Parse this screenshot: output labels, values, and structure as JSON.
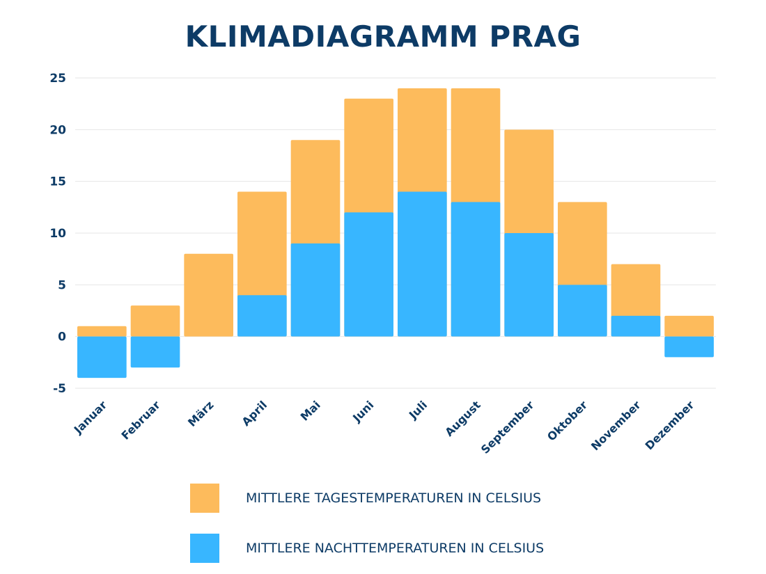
{
  "chart_data": {
    "type": "bar",
    "title": "KLIMADIAGRAMM PRAG",
    "categories": [
      "Januar",
      "Februar",
      "März",
      "April",
      "Mai",
      "Juni",
      "Juli",
      "August",
      "September",
      "Oktober",
      "November",
      "Dezember"
    ],
    "series": [
      {
        "name": "MITTLERE TAGESTEMPERATUREN IN CELSIUS",
        "color": "#fdbb5c",
        "values": [
          1,
          3,
          8,
          14,
          19,
          23,
          24,
          24,
          20,
          13,
          7,
          2
        ]
      },
      {
        "name": "MITTLERE NACHTTEMPERATUREN IN CELSIUS",
        "color": "#38b6ff",
        "values": [
          -4,
          -3,
          0,
          4,
          9,
          12,
          14,
          13,
          10,
          5,
          2,
          -2
        ]
      }
    ],
    "yticks": [
      25,
      20,
      15,
      10,
      5,
      0,
      -5
    ],
    "ylim": [
      -5,
      25
    ],
    "grid": true,
    "legend_position": "bottom",
    "xlabel": "",
    "ylabel": ""
  }
}
